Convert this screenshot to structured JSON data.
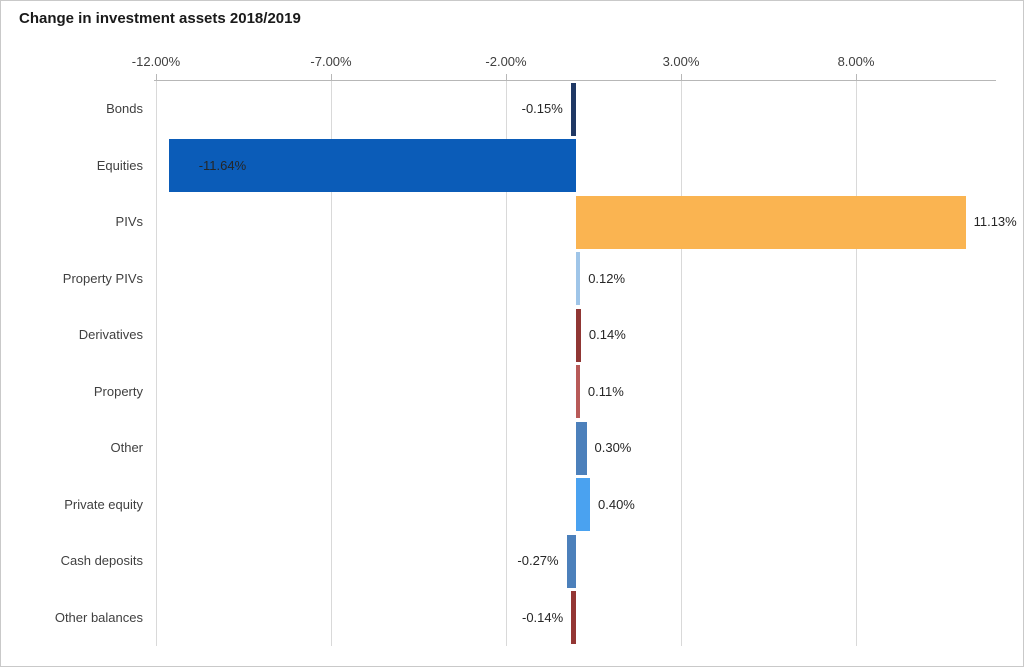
{
  "title": "Change in investment assets 2018/2019",
  "chart_data": {
    "type": "bar",
    "orientation": "horizontal",
    "title": "Change in investment assets 2018/2019",
    "xlabel": "",
    "ylabel": "",
    "categories": [
      "Bonds",
      "Equities",
      "PIVs",
      "Property PIVs",
      "Derivatives",
      "Property",
      "Other",
      "Private equity",
      "Cash deposits",
      "Other balances"
    ],
    "values": [
      -0.15,
      -11.64,
      11.13,
      0.12,
      0.14,
      0.11,
      0.3,
      0.4,
      -0.27,
      -0.14
    ],
    "value_labels": [
      "-0.15%",
      "-11.64%",
      "11.13%",
      "0.12%",
      "0.14%",
      "0.11%",
      "0.30%",
      "0.40%",
      "-0.27%",
      "-0.14%"
    ],
    "bar_colors": [
      "#1F3864",
      "#0B5CB8",
      "#FAB451",
      "#9FC5E8",
      "#903634",
      "#B85A58",
      "#4C80BB",
      "#4AA2F0",
      "#4C80BB",
      "#943634"
    ],
    "x_ticks": [
      -12,
      -7,
      -2,
      3,
      8
    ],
    "x_tick_labels": [
      "-12.00%",
      "-7.00%",
      "-2.00%",
      "3.00%",
      "8.00%"
    ],
    "xlim": [
      -12.06,
      12.0
    ],
    "axis_position": "top",
    "grid": true,
    "gridline_color": "#d9d9d9",
    "axis_color": "#b7b7b7",
    "tick_text_color": "#404040",
    "value_label_color": "#262626",
    "legend": "none"
  }
}
